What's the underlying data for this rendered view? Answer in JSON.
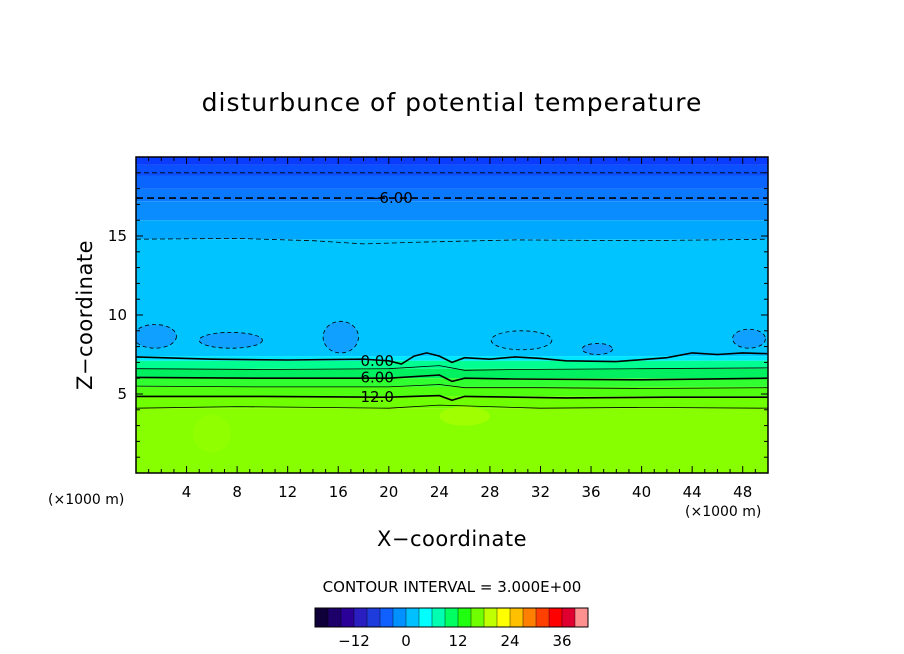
{
  "chart_data": {
    "type": "contour",
    "title": "disturbunce of potential temperature",
    "xlabel": "X−coordinate",
    "ylabel": "Z−coordinate",
    "x_unit_label": "(×1000 m)",
    "y_unit_label": "(×1000 m)",
    "xlim": [
      0,
      50
    ],
    "ylim": [
      0,
      20
    ],
    "x_ticks": [
      4,
      8,
      12,
      16,
      20,
      24,
      28,
      32,
      36,
      40,
      44,
      48
    ],
    "y_ticks": [
      5,
      10,
      15
    ],
    "contour_interval_text": "CONTOUR INTERVAL = 3.000E+00",
    "contour_interval": 3.0,
    "colorbar": {
      "min": -21,
      "max": 42,
      "ticks": [
        -12,
        0,
        12,
        24,
        36
      ],
      "colors": [
        "#10003a",
        "#1e006a",
        "#2a0099",
        "#2a1ec0",
        "#1e3cdc",
        "#1060ff",
        "#0090ff",
        "#00c0ff",
        "#00ffff",
        "#00ffb0",
        "#00ff60",
        "#20ff10",
        "#70ff00",
        "#c0ff00",
        "#ffff00",
        "#ffc000",
        "#ff8000",
        "#ff4000",
        "#ff0000",
        "#e00030",
        "#ff9090"
      ]
    },
    "contour_labels": [
      {
        "text": "−6.00",
        "x": 18.5,
        "z": 17.4
      },
      {
        "text": "0.00",
        "x": 17.5,
        "z": 7.1
      },
      {
        "text": "6.00",
        "x": 17.5,
        "z": 6.05
      },
      {
        "text": "12.0",
        "x": 17.5,
        "z": 4.8
      }
    ],
    "contour_lines": [
      {
        "level": -9,
        "style": "dashed-thin",
        "points": [
          [
            0,
            19
          ],
          [
            50,
            19
          ]
        ]
      },
      {
        "level": -6,
        "style": "dashed-thick",
        "points": [
          [
            0,
            17.4
          ],
          [
            50,
            17.4
          ]
        ]
      },
      {
        "level": -3,
        "style": "dashed-thin",
        "points": [
          [
            0,
            14.8
          ],
          [
            8,
            14.85
          ],
          [
            14,
            14.7
          ],
          [
            18,
            14.5
          ],
          [
            22,
            14.6
          ],
          [
            30,
            14.75
          ],
          [
            40,
            14.7
          ],
          [
            50,
            14.8
          ]
        ]
      },
      {
        "level": 0,
        "style": "solid-thick",
        "points": [
          [
            0,
            7.35
          ],
          [
            6,
            7.2
          ],
          [
            12,
            7.15
          ],
          [
            18,
            7.2
          ],
          [
            20,
            7.1
          ],
          [
            21,
            6.9
          ],
          [
            22,
            7.4
          ],
          [
            23,
            7.6
          ],
          [
            24,
            7.4
          ],
          [
            25,
            7.0
          ],
          [
            26,
            7.3
          ],
          [
            28,
            7.2
          ],
          [
            30,
            7.35
          ],
          [
            32,
            7.25
          ],
          [
            34,
            7.1
          ],
          [
            38,
            7.05
          ],
          [
            42,
            7.3
          ],
          [
            44,
            7.6
          ],
          [
            46,
            7.5
          ],
          [
            48,
            7.6
          ],
          [
            50,
            7.55
          ]
        ]
      },
      {
        "level": 3,
        "style": "solid-thin",
        "points": [
          [
            0,
            6.6
          ],
          [
            10,
            6.55
          ],
          [
            20,
            6.6
          ],
          [
            24,
            6.8
          ],
          [
            26,
            6.5
          ],
          [
            30,
            6.55
          ],
          [
            40,
            6.6
          ],
          [
            50,
            6.65
          ]
        ]
      },
      {
        "level": 6,
        "style": "solid-thick",
        "points": [
          [
            0,
            6.05
          ],
          [
            10,
            6.0
          ],
          [
            20,
            6.0
          ],
          [
            24,
            6.2
          ],
          [
            25,
            5.8
          ],
          [
            26,
            6.0
          ],
          [
            30,
            5.95
          ],
          [
            40,
            5.9
          ],
          [
            50,
            6.0
          ]
        ]
      },
      {
        "level": 9,
        "style": "solid-thin",
        "points": [
          [
            0,
            5.5
          ],
          [
            10,
            5.45
          ],
          [
            20,
            5.45
          ],
          [
            24,
            5.6
          ],
          [
            26,
            5.4
          ],
          [
            32,
            5.4
          ],
          [
            40,
            5.35
          ],
          [
            50,
            5.4
          ]
        ]
      },
      {
        "level": 12,
        "style": "solid-thick",
        "points": [
          [
            0,
            4.85
          ],
          [
            10,
            4.85
          ],
          [
            20,
            4.8
          ],
          [
            24,
            4.9
          ],
          [
            25,
            4.6
          ],
          [
            26,
            4.85
          ],
          [
            34,
            4.75
          ],
          [
            42,
            4.8
          ],
          [
            50,
            4.8
          ]
        ]
      },
      {
        "level": 15,
        "style": "solid-thin",
        "points": [
          [
            0,
            4.1
          ],
          [
            8,
            4.2
          ],
          [
            14,
            4.15
          ],
          [
            20,
            4.1
          ],
          [
            24,
            4.3
          ],
          [
            26,
            4.25
          ],
          [
            32,
            4.1
          ],
          [
            40,
            4.15
          ],
          [
            50,
            4.1
          ]
        ]
      }
    ],
    "filled_bands": [
      {
        "from_z": 19.5,
        "to_z": 20,
        "color": "#0a3cff"
      },
      {
        "from_z": 18.8,
        "to_z": 19.5,
        "color": "#0a50ff"
      },
      {
        "from_z": 18.0,
        "to_z": 18.8,
        "color": "#0a64ff"
      },
      {
        "from_z": 17.2,
        "to_z": 18.0,
        "color": "#0a78ff"
      },
      {
        "from_z": 16.0,
        "to_z": 17.2,
        "color": "#0a8cff"
      },
      {
        "from_z": 14.8,
        "to_z": 16.0,
        "color": "#00a8ff"
      },
      {
        "from_z": 7.4,
        "to_z": 14.8,
        "color": "#00c4ff"
      },
      {
        "from_z": 7.1,
        "to_z": 7.4,
        "color": "#00e6ff"
      },
      {
        "from_z": 6.6,
        "to_z": 7.1,
        "color": "#00ff90"
      },
      {
        "from_z": 6.0,
        "to_z": 6.6,
        "color": "#00f060"
      },
      {
        "from_z": 5.45,
        "to_z": 6.0,
        "color": "#30ff30"
      },
      {
        "from_z": 4.85,
        "to_z": 5.45,
        "color": "#50ff10"
      },
      {
        "from_z": 4.1,
        "to_z": 4.85,
        "color": "#70ff00"
      },
      {
        "from_z": 0,
        "to_z": 4.1,
        "color": "#88ff00"
      }
    ],
    "patches": [
      {
        "x": 1.5,
        "z": 8.65,
        "rx": 1.7,
        "rz": 0.75,
        "color": "#10a0ff",
        "dashed": true
      },
      {
        "x": 7.5,
        "z": 8.4,
        "rx": 2.5,
        "rz": 0.5,
        "color": "#10a0ff",
        "dashed": true
      },
      {
        "x": 16.2,
        "z": 8.6,
        "rx": 1.4,
        "rz": 1.0,
        "color": "#10a0ff",
        "dashed": true
      },
      {
        "x": 30.5,
        "z": 8.4,
        "rx": 2.4,
        "rz": 0.6,
        "color": "#00b8ff",
        "dashed": true
      },
      {
        "x": 36.5,
        "z": 7.85,
        "rx": 1.2,
        "rz": 0.35,
        "color": "#10a0ff",
        "dashed": true
      },
      {
        "x": 48.5,
        "z": 8.5,
        "rx": 1.3,
        "rz": 0.6,
        "color": "#10a0ff",
        "dashed": true
      },
      {
        "x": 26,
        "z": 3.6,
        "rx": 2.0,
        "rz": 0.6,
        "color": "#a0ff00",
        "dashed": false
      },
      {
        "x": 6,
        "z": 2.5,
        "rx": 1.5,
        "rz": 1.2,
        "color": "#90ff00",
        "dashed": false
      }
    ]
  }
}
